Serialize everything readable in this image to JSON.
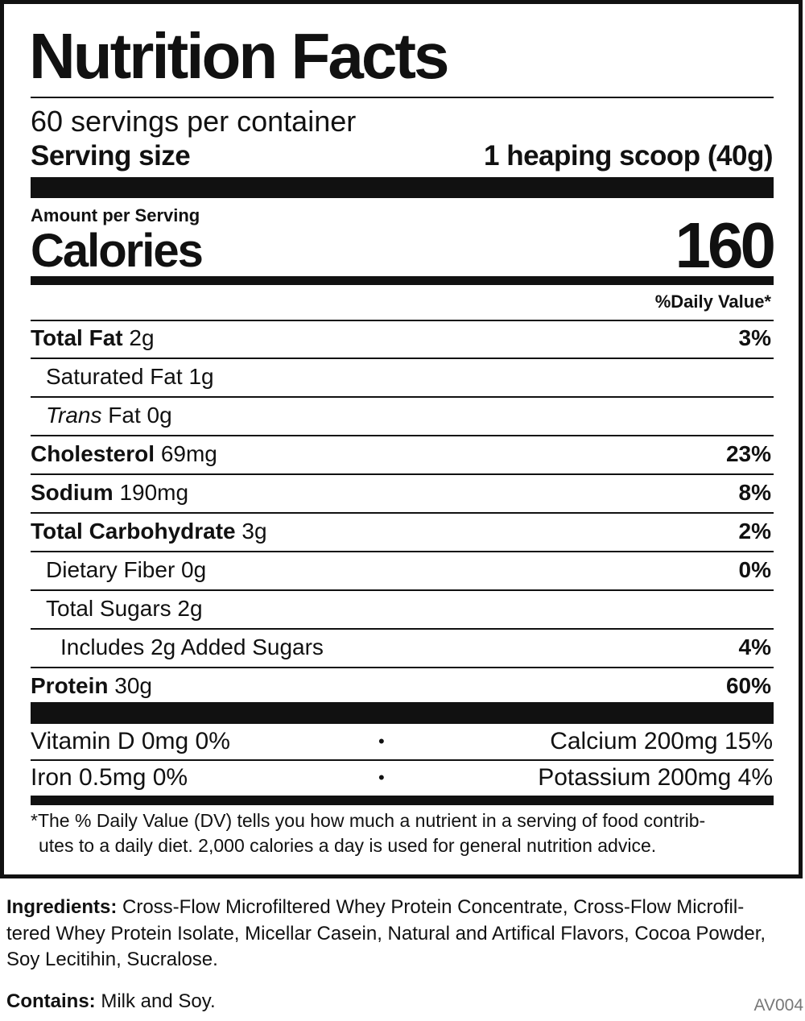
{
  "label": {
    "title": "Nutrition Facts",
    "servings": "60 servings per container",
    "serving_size": {
      "label": "Serving size",
      "value": "1 heaping scoop (40g)"
    },
    "amount_per_serving": "Amount per Serving",
    "calories": {
      "label": "Calories",
      "value": "160"
    },
    "dv_header": "%Daily Value*",
    "rows": [
      {
        "name": "Total Fat",
        "amount": "2g",
        "dv": "3%",
        "bold": true,
        "indent": 0
      },
      {
        "name": "Saturated Fat",
        "amount": "1g",
        "indent": 1
      },
      {
        "name": "Trans",
        "amount": "Fat 0g",
        "italic": true,
        "indent": 1
      },
      {
        "name": "Cholesterol",
        "amount": "69mg",
        "dv": "23%",
        "bold": true,
        "indent": 0
      },
      {
        "name": "Sodium",
        "amount": "190mg",
        "dv": "8%",
        "bold": true,
        "indent": 0
      },
      {
        "name": "Total Carbohydrate",
        "amount": "3g",
        "dv": "2%",
        "bold": true,
        "indent": 0
      },
      {
        "name": "Dietary Fiber",
        "amount": "0g",
        "dv": "0%",
        "indent": 1
      },
      {
        "name": "Total Sugars",
        "amount": "2g",
        "indent": 1
      },
      {
        "name": "Includes 2g Added Sugars",
        "dv": "4%",
        "indent": 2
      },
      {
        "name": "Protein",
        "amount": "30g",
        "dv": "60%",
        "bold": true,
        "indent": 0
      }
    ],
    "vitamins": [
      {
        "left": "Vitamin D 0mg 0%",
        "separator": "•",
        "right": "Calcium 200mg 15%"
      },
      {
        "left": "Iron 0.5mg 0%",
        "separator": "•",
        "right": "Potassium 200mg 4%"
      }
    ],
    "footnote": [
      "*The % Daily Value (DV) tells you how much a nutrient in a serving of food contrib-",
      "utes to a daily diet. 2,000 calories a day is used for general nutrition advice."
    ]
  },
  "ingredients": {
    "label": "Ingredients:",
    "lines": [
      " Cross-Flow Microfiltered Whey Protein Concentrate, Cross-Flow Microfil-",
      "tered Whey Protein Isolate, Micellar Casein, Natural and Artifical Flavors, Cocoa Powder,",
      "Soy Lecitihin, Sucralose."
    ]
  },
  "contains": {
    "label": "Contains:",
    "text": " Milk and Soy."
  },
  "code": "AV004"
}
